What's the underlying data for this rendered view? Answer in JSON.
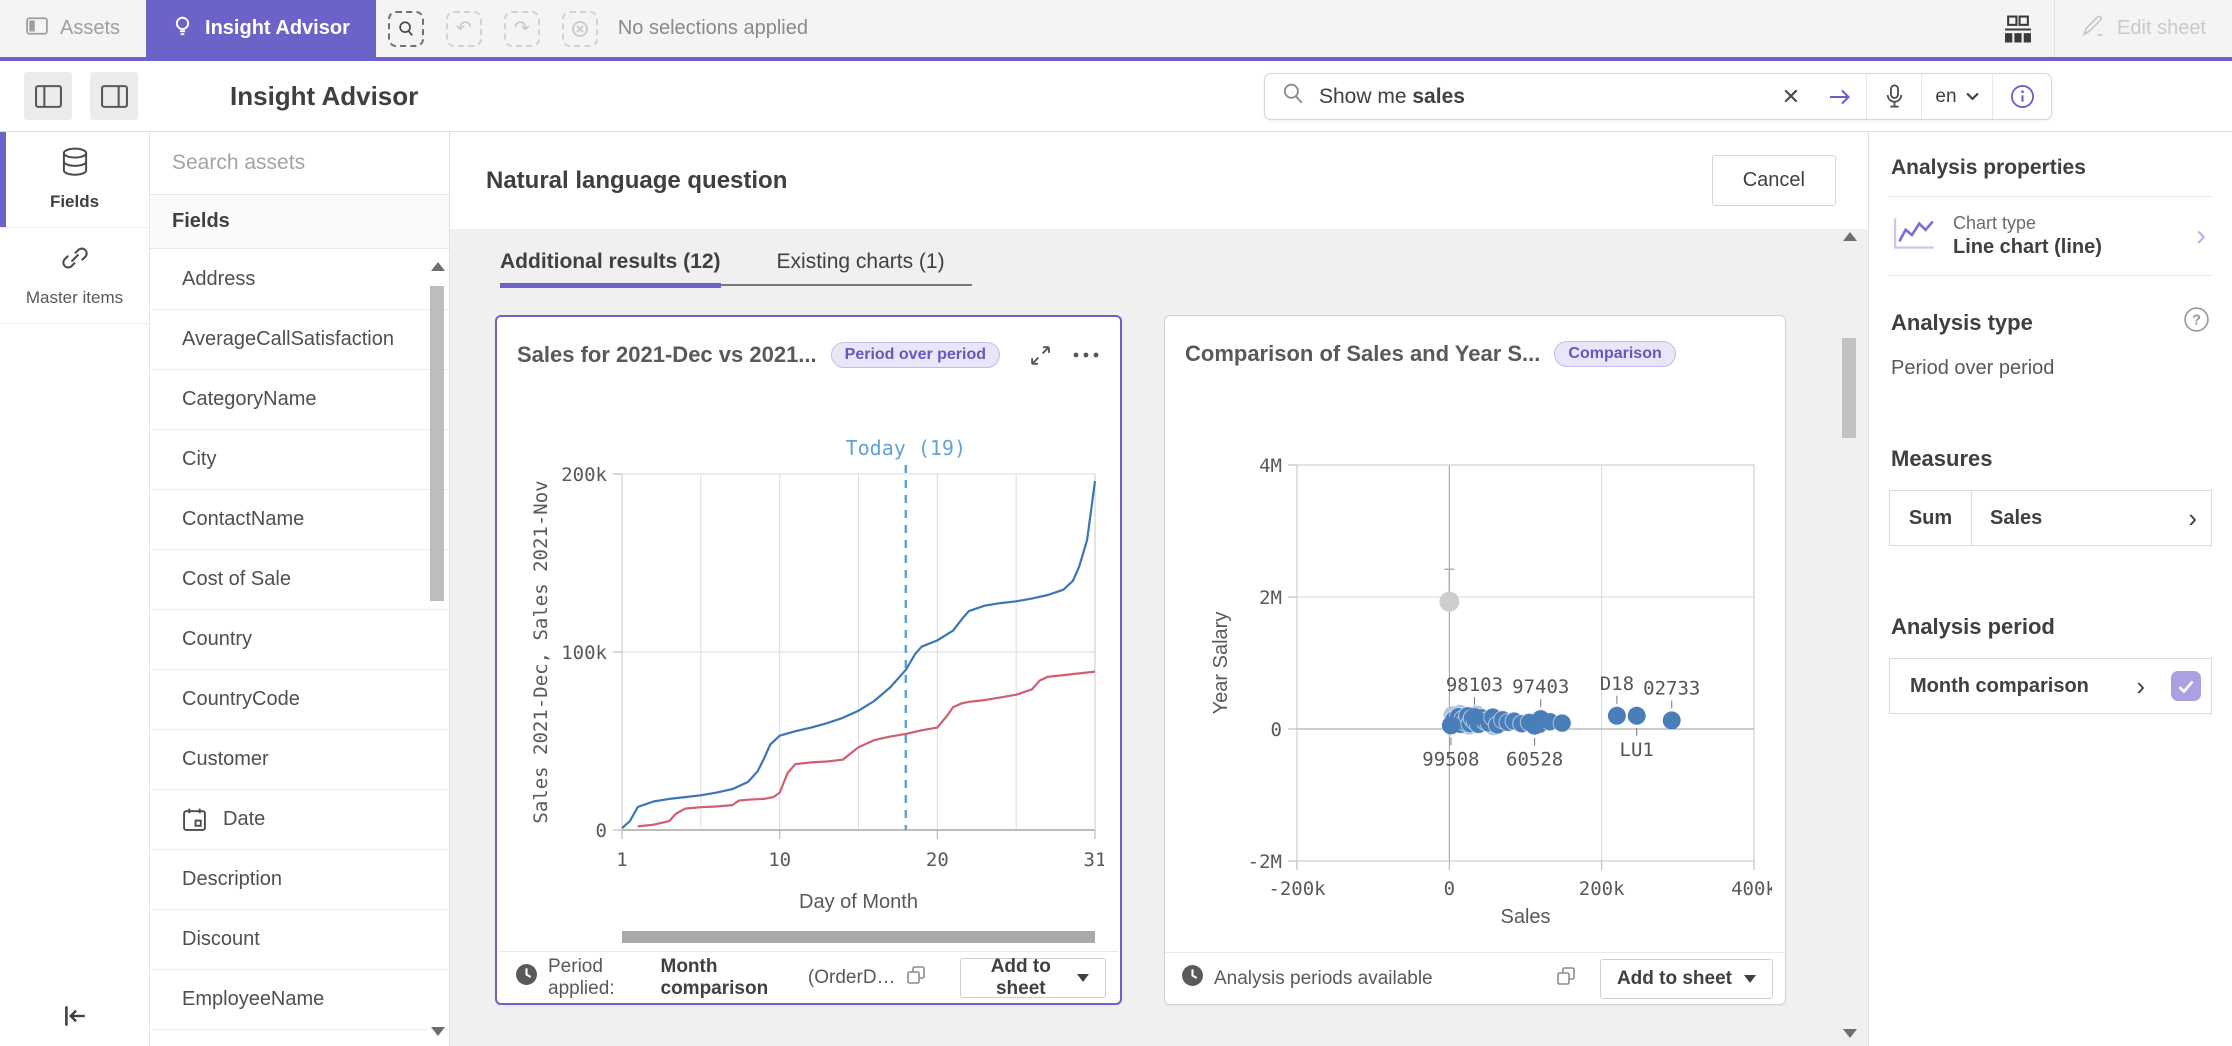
{
  "colors": {
    "accent": "#6c63c8",
    "top_strip": "#6b62cf",
    "line_blue": "#3a76b5",
    "line_red": "#d05e72",
    "today_blue": "#62a3d5",
    "scatter_dot": "#4a7eb8",
    "badge_bg": "#eae6f9",
    "badge_text": "#6458bd"
  },
  "topbar": {
    "assets_tab": "Assets",
    "insight_advisor_tab": "Insight Advisor",
    "no_selections": "No selections applied",
    "edit_sheet": "Edit sheet"
  },
  "toolbar": {
    "title": "Insight Advisor",
    "search_prefix": "Show me ",
    "search_query": "sales",
    "language": "en"
  },
  "rail": {
    "fields": "Fields",
    "master_items": "Master items"
  },
  "assets_panel": {
    "placeholder": "Search assets",
    "header": "Fields",
    "items": [
      {
        "label": "Address"
      },
      {
        "label": "AverageCallSatisfaction"
      },
      {
        "label": "CategoryName"
      },
      {
        "label": "City"
      },
      {
        "label": "ContactName"
      },
      {
        "label": "Cost of Sale"
      },
      {
        "label": "Country"
      },
      {
        "label": "CountryCode"
      },
      {
        "label": "Customer"
      },
      {
        "label": "Date",
        "icon": "calendar"
      },
      {
        "label": "Description"
      },
      {
        "label": "Discount"
      },
      {
        "label": "EmployeeName"
      }
    ]
  },
  "main": {
    "title": "Natural language question",
    "cancel": "Cancel",
    "tabs": [
      {
        "label": "Additional results (12)"
      },
      {
        "label": "Existing charts (1)"
      }
    ]
  },
  "cards": [
    {
      "title": "Sales for 2021-Dec vs 2021...",
      "badge": "Period over period",
      "footer_prefix": "Period applied:",
      "footer_bold": "Month comparison",
      "footer_suffix": "(OrderD…",
      "add_button": "Add to sheet"
    },
    {
      "title": "Comparison of Sales and Year S...",
      "badge": "Comparison",
      "footer_text": "Analysis periods available",
      "add_button": "Add to sheet"
    }
  ],
  "chart_data": [
    {
      "type": "line",
      "title": "Sales for 2021-Dec vs 2021...",
      "xlabel": "Day of Month",
      "ylabel": "Sales 2021-Dec, Sales 2021-Nov",
      "xlim": [
        1,
        31
      ],
      "ylim": [
        0,
        230000
      ],
      "x_ticks": [
        1,
        10,
        20,
        31
      ],
      "y_ticks": [
        {
          "value": 0,
          "label": "0"
        },
        {
          "value": 100000,
          "label": "100k"
        },
        {
          "value": 200000,
          "label": "200k"
        }
      ],
      "grid_x_count": 7,
      "legend_position": "none",
      "annotation": {
        "x": 19,
        "label": "Today (19)",
        "color": "#62a3d5"
      },
      "series": [
        {
          "name": "Sales 2021-Dec",
          "color": "#3a76b5",
          "points": [
            [
              1,
              1000
            ],
            [
              1.5,
              5000
            ],
            [
              2,
              13000
            ],
            [
              3,
              16000
            ],
            [
              4,
              17500
            ],
            [
              5,
              18500
            ],
            [
              6,
              19500
            ],
            [
              7,
              21000
            ],
            [
              8,
              23000
            ],
            [
              9,
              27000
            ],
            [
              9.6,
              33000
            ],
            [
              10,
              40000
            ],
            [
              10.4,
              48000
            ],
            [
              11,
              53000
            ],
            [
              12,
              55500
            ],
            [
              13,
              57500
            ],
            [
              14,
              60000
            ],
            [
              15,
              63000
            ],
            [
              16,
              67000
            ],
            [
              17,
              72500
            ],
            [
              18,
              80000
            ],
            [
              19,
              90000
            ],
            [
              19.6,
              99000
            ],
            [
              20,
              103000
            ],
            [
              21,
              106500
            ],
            [
              22,
              112000
            ],
            [
              22.6,
              119000
            ],
            [
              23,
              123000
            ],
            [
              24,
              126000
            ],
            [
              25,
              127500
            ],
            [
              26,
              128500
            ],
            [
              27,
              130000
            ],
            [
              28,
              132000
            ],
            [
              29,
              135000
            ],
            [
              29.6,
              140000
            ],
            [
              30,
              148000
            ],
            [
              30.5,
              163000
            ],
            [
              31,
              196000
            ]
          ]
        },
        {
          "name": "Sales 2021-Nov",
          "color": "#d05e72",
          "points": [
            [
              2,
              2000
            ],
            [
              3,
              3000
            ],
            [
              4,
              5000
            ],
            [
              4.4,
              9000
            ],
            [
              5,
              12000
            ],
            [
              6,
              12800
            ],
            [
              7,
              13200
            ],
            [
              8,
              14000
            ],
            [
              8.4,
              16500
            ],
            [
              9,
              17000
            ],
            [
              10,
              17500
            ],
            [
              10.6,
              18500
            ],
            [
              11,
              21000
            ],
            [
              11.5,
              32000
            ],
            [
              12,
              37000
            ],
            [
              13,
              38000
            ],
            [
              14,
              38500
            ],
            [
              15,
              39500
            ],
            [
              15.5,
              43000
            ],
            [
              16,
              46500
            ],
            [
              17,
              50500
            ],
            [
              18,
              52500
            ],
            [
              19,
              54000
            ],
            [
              20,
              56000
            ],
            [
              21,
              57500
            ],
            [
              21.6,
              64000
            ],
            [
              22,
              69000
            ],
            [
              22.5,
              71000
            ],
            [
              23,
              72000
            ],
            [
              24,
              73000
            ],
            [
              25,
              74500
            ],
            [
              26,
              76000
            ],
            [
              27,
              79000
            ],
            [
              27.5,
              84000
            ],
            [
              28,
              86000
            ],
            [
              29,
              87000
            ],
            [
              30,
              88000
            ],
            [
              31,
              89000
            ]
          ]
        }
      ]
    },
    {
      "type": "scatter",
      "title": "Comparison of Sales and Year S...",
      "xlabel": "Sales",
      "ylabel": "Year Salary",
      "xlim": [
        -200000,
        400000
      ],
      "ylim": [
        -2000000,
        4000000
      ],
      "x_ticks": [
        {
          "value": -200000,
          "label": "-200k"
        },
        {
          "value": 0,
          "label": "0"
        },
        {
          "value": 200000,
          "label": "200k"
        },
        {
          "value": 400000,
          "label": "400k"
        }
      ],
      "y_ticks": [
        {
          "value": 4000000,
          "label": "4M"
        },
        {
          "value": 2000000,
          "label": "2M"
        },
        {
          "value": 0,
          "label": "0"
        },
        {
          "value": -2000000,
          "label": "-2M"
        }
      ],
      "dot_color": "#4a7eb8",
      "dot_color_light": "#b3c6e0",
      "points": [
        [
          2000,
          60000
        ],
        [
          6000,
          140000
        ],
        [
          9000,
          90000
        ],
        [
          12000,
          190000
        ],
        [
          15000,
          70000
        ],
        [
          18000,
          150000
        ],
        [
          21000,
          100000
        ],
        [
          24000,
          200000
        ],
        [
          27000,
          80000
        ],
        [
          30000,
          160000
        ],
        [
          34000,
          110000
        ],
        [
          38000,
          70000
        ],
        [
          42000,
          170000
        ],
        [
          47000,
          120000
        ],
        [
          52000,
          90000
        ],
        [
          57000,
          180000
        ],
        [
          63000,
          60000
        ],
        [
          70000,
          140000
        ],
        [
          77000,
          100000
        ],
        [
          85000,
          120000
        ],
        [
          95000,
          80000
        ],
        [
          105000,
          100000
        ],
        [
          118000,
          70000
        ],
        [
          132000,
          110000
        ],
        [
          148000,
          90000
        ]
      ],
      "light_points": [
        [
          4000,
          210000
        ],
        [
          14000,
          230000
        ],
        [
          26000,
          50000
        ],
        [
          36000,
          220000
        ],
        [
          58000,
          40000
        ]
      ],
      "labeled_points": [
        {
          "x": 33000,
          "y": 180000,
          "label": "98103",
          "pos": "above"
        },
        {
          "x": 120000,
          "y": 150000,
          "label": "97403",
          "pos": "above"
        },
        {
          "x": 2000,
          "y": 55000,
          "label": "99508",
          "pos": "below"
        },
        {
          "x": 112000,
          "y": 50000,
          "label": "60528",
          "pos": "below"
        },
        {
          "x": 220000,
          "y": 200000,
          "label": "D18",
          "pos": "above"
        },
        {
          "x": 246000,
          "y": 200000,
          "label": "LU1",
          "pos": "below"
        },
        {
          "x": 292000,
          "y": 130000,
          "label": "02733",
          "pos": "above"
        }
      ],
      "outlier": {
        "x": 0,
        "y": 1930000,
        "stem_top": 2420000,
        "color": "#cecece"
      }
    }
  ],
  "right_panel": {
    "title": "Analysis properties",
    "chart_type_label": "Chart type",
    "chart_type_value": "Line chart (line)",
    "analysis_type_label": "Analysis type",
    "analysis_type_value": "Period over period",
    "measures_label": "Measures",
    "measure_agg": "Sum",
    "measure_field": "Sales",
    "period_label": "Analysis period",
    "period_value": "Month comparison"
  }
}
